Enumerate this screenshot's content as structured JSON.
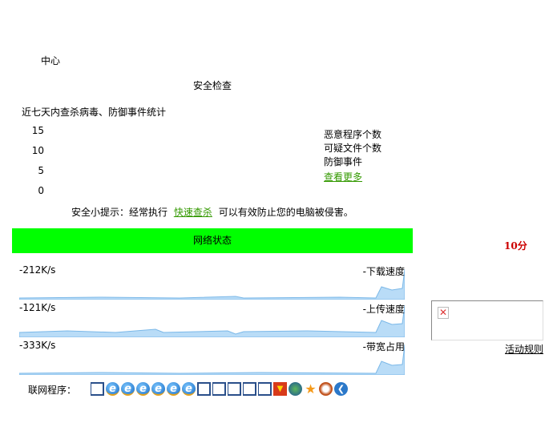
{
  "header": {
    "center_label": "中心",
    "section_title": "安全检查"
  },
  "stats": {
    "title": "近七天内查杀病毒、防御事件统计",
    "y_ticks": [
      "15",
      "10",
      "5",
      "0"
    ],
    "legend": [
      "恶意程序个数",
      "可疑文件个数",
      "防御事件"
    ],
    "more_link": "查看更多"
  },
  "tip": {
    "prefix": "安全小提示：经常执行",
    "link": "快速查杀",
    "suffix": "可以有效防止您的电脑被侵害。"
  },
  "network": {
    "title": "网络状态",
    "accent": "#00ff00",
    "graphs": [
      {
        "value": "-212K/s",
        "label": "-下载速度"
      },
      {
        "value": "-121K/s",
        "label": "-上传速度"
      },
      {
        "value": "-333K/s",
        "label": "-带宽占用"
      }
    ],
    "programs_label": "联网程序：",
    "program_icons": [
      "window-icon",
      "ie-icon",
      "ie-icon",
      "ie-icon",
      "ie-icon",
      "ie-icon",
      "ie-icon",
      "window-icon",
      "window-icon",
      "window-icon",
      "window-icon",
      "window-icon",
      "download-icon",
      "globe-icon",
      "star-icon",
      "app-icon",
      "back-icon"
    ]
  },
  "side": {
    "score": "10分",
    "score_color": "#cc0000",
    "rules_link": "活动规则"
  }
}
